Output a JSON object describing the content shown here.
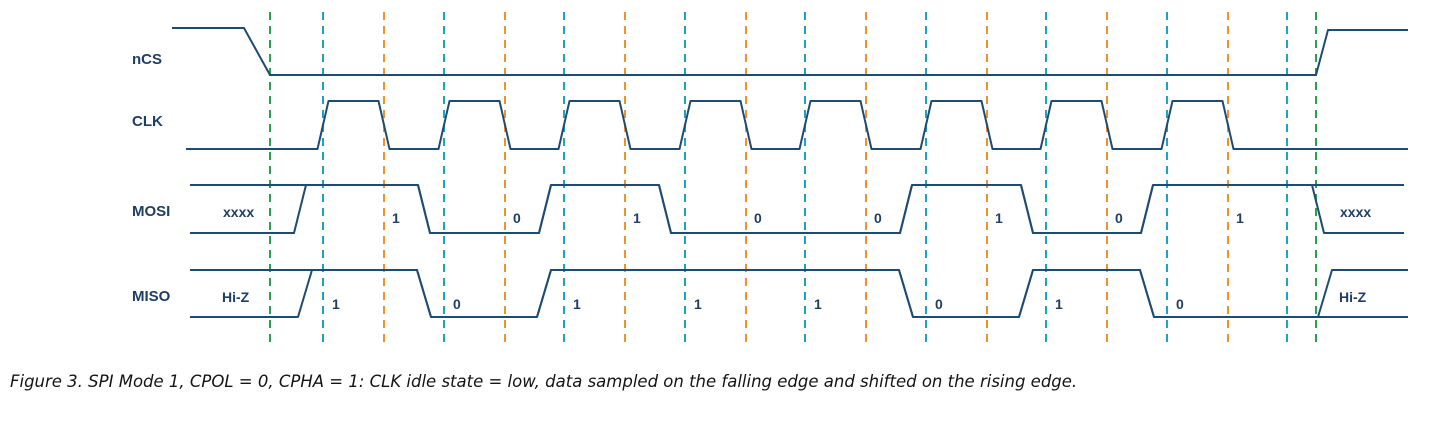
{
  "diagram": {
    "signals": {
      "ncs": "nCS",
      "clk": "CLK",
      "mosi": "MOSI",
      "miso": "MISO"
    },
    "mosi": {
      "idle_before": "xxxx",
      "idle_after": "xxxx",
      "bits": [
        "1",
        "0",
        "1",
        "0",
        "0",
        "1",
        "0",
        "1"
      ]
    },
    "miso": {
      "idle_before": "Hi-Z",
      "idle_after": "Hi-Z",
      "bits": [
        "1",
        "0",
        "1",
        "1",
        "1",
        "0",
        "1",
        "0"
      ]
    },
    "colors": {
      "waveform": "#1f4b73",
      "label": "#1f3e66",
      "cs_edge_marker": "#2aa350",
      "rising_edge_marker": "#1ca3c8",
      "falling_edge_marker": "#f0922b"
    }
  },
  "caption": "Figure 3. SPI Mode 1, CPOL = 0, CPHA = 1: CLK idle state = low, data sampled on the falling edge and shifted on the rising edge."
}
